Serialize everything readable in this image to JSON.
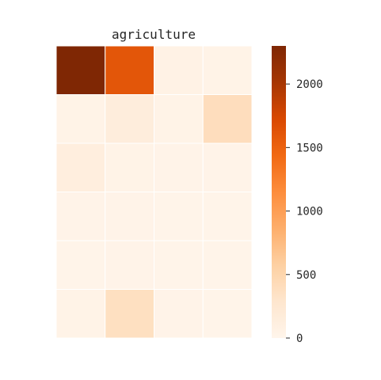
{
  "chart_data": {
    "type": "heatmap",
    "title": "agriculture",
    "rows": 6,
    "cols": 4,
    "values": [
      [
        2300,
        1600,
        60,
        40
      ],
      [
        40,
        150,
        40,
        400
      ],
      [
        130,
        40,
        30,
        30
      ],
      [
        30,
        30,
        20,
        20
      ],
      [
        20,
        30,
        20,
        20
      ],
      [
        40,
        370,
        30,
        20
      ]
    ],
    "colorbar": {
      "min": 0,
      "max": 2300,
      "ticks": [
        0,
        500,
        1000,
        1500,
        2000
      ],
      "tick_labels": [
        "0",
        "500",
        "1000",
        "1500",
        "2000"
      ]
    },
    "colormap": [
      "#fff5eb",
      "#fee6ce",
      "#fdd0a2",
      "#fdae6b",
      "#fd8d3c",
      "#f16913",
      "#d94801",
      "#a63603",
      "#7f2704"
    ],
    "grid_color": "#ffffff"
  }
}
